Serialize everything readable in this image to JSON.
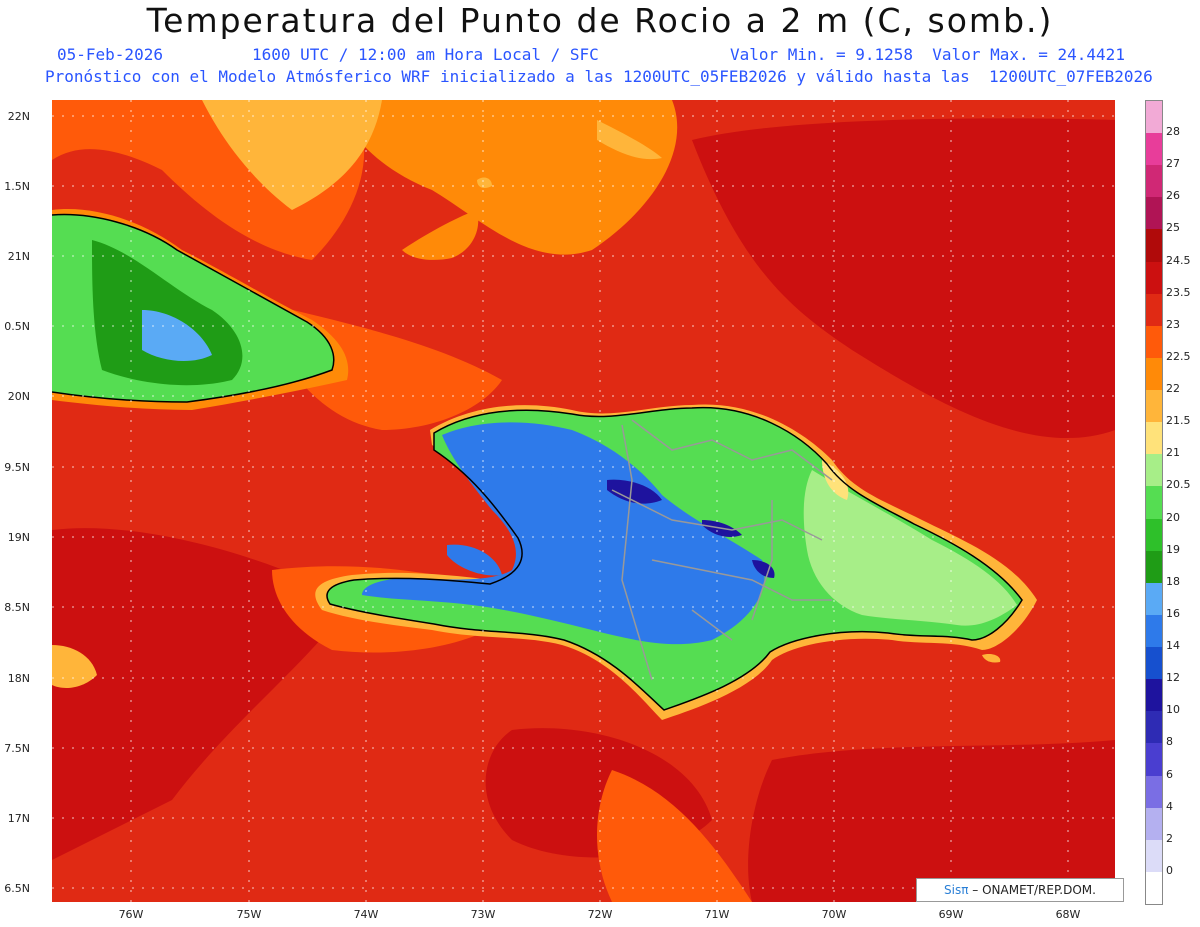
{
  "title": "Temperatura del Punto de Rocio a 2 m (C, somb.)",
  "subtitle_left": "05-Feb-2026",
  "subtitle_center": "1600 UTC / 12:00 am Hora Local / SFC",
  "subtitle_right": "Valor Min. = 9.1258  Valor Max. = 24.4421",
  "info_line": "Pronóstico con el Modelo Atmósferico WRF inicializado a las 1200UTC_05FEB2026 y válido hasta las  1200UTC_07FEB2026",
  "lat_labels": [
    "22N",
    "1.5N",
    "21N",
    "0.5N",
    "20N",
    "9.5N",
    "19N",
    "8.5N",
    "18N",
    "7.5N",
    "17N",
    "6.5N"
  ],
  "lon_labels": [
    "76W",
    "75W",
    "74W",
    "73W",
    "72W",
    "71W",
    "70W",
    "69W",
    "68W"
  ],
  "legend": {
    "labels": [
      "28",
      "27",
      "26",
      "25",
      "24.5",
      "23.5",
      "23",
      "22.5",
      "22",
      "21.5",
      "21",
      "20.5",
      "20",
      "19",
      "18",
      "16",
      "14",
      "12",
      "10",
      "8",
      "6",
      "4",
      "2",
      "0"
    ],
    "colors": [
      "#f2aad6",
      "#e83d9a",
      "#d02875",
      "#b01455",
      "#b00a0a",
      "#cc1010",
      "#e02a14",
      "#ff5a0a",
      "#ff8a08",
      "#ffb53a",
      "#ffe27a",
      "#a7ee88",
      "#55dd52",
      "#2ec02a",
      "#1f9c16",
      "#5aaaf5",
      "#2e7aea",
      "#1650cf",
      "#1e139e",
      "#2e2bb4",
      "#4a3ed0",
      "#7a6ee4",
      "#b4b0f0",
      "#dcdcf8",
      "#ffffff"
    ]
  },
  "credit": {
    "brand": "Sisπ",
    "text": " – ONAMET/REP.DOM."
  },
  "colors": {
    "ocean_dark": "#cc1010",
    "ocean": "#e02a14",
    "ocean_light": "#ff5a0a",
    "coast_warm": "#ff8a08",
    "coast_yellow": "#ffb53a",
    "land_green": "#55dd52",
    "land_blue": "#2e7aea",
    "land_darkblue": "#1e139e",
    "light_green": "#a7ee88"
  }
}
